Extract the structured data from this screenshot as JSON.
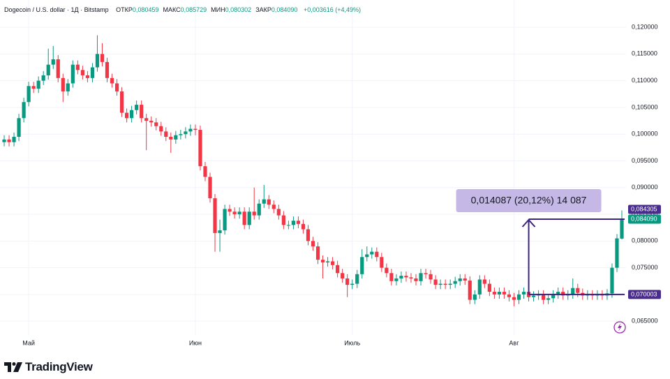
{
  "chart_data": {
    "type": "candlestick",
    "title": "Dogecoin / U.S. dollar · 1Д · Bitstamp",
    "header_fields": [
      {
        "label": "ОТКР",
        "value": "0,080459"
      },
      {
        "label": "МАКС",
        "value": "0,085729"
      },
      {
        "label": "МИН",
        "value": "0,080302"
      },
      {
        "label": "ЗАКР",
        "value": "0,084090"
      }
    ],
    "change": "+0,003616 (+4,49%)",
    "up_color": "#089981",
    "down_color": "#f23645",
    "grid": true,
    "categories": [
      null,
      null,
      null,
      null,
      null,
      "Май",
      null,
      null,
      null,
      null,
      null,
      null,
      null,
      null,
      null,
      null,
      null,
      null,
      null,
      null,
      null,
      null,
      null,
      null,
      null,
      null,
      null,
      null,
      null,
      null,
      null,
      null,
      null,
      null,
      null,
      null,
      null,
      null,
      null,
      "Июн",
      null,
      null,
      null,
      null,
      null,
      null,
      null,
      null,
      null,
      null,
      null,
      null,
      null,
      null,
      null,
      null,
      null,
      null,
      null,
      null,
      null,
      null,
      null,
      null,
      null,
      null,
      null,
      null,
      null,
      null,
      null,
      "Июль",
      null,
      null,
      null,
      null,
      null,
      null,
      null,
      null,
      null,
      null,
      null,
      null,
      null,
      null,
      null,
      null,
      null,
      null,
      null,
      null,
      null,
      null,
      null,
      null,
      null,
      null,
      null,
      null,
      null,
      null,
      null,
      null,
      "Авг",
      null,
      null,
      null,
      null,
      null,
      null,
      null,
      null,
      null,
      null,
      null,
      null,
      null,
      null,
      null,
      null,
      null,
      null,
      null,
      null,
      null,
      null
    ],
    "open": [
      0.0985,
      0.099,
      0.0985,
      0.0995,
      0.103,
      0.106,
      0.109,
      0.1085,
      0.11,
      0.111,
      0.113,
      0.114,
      0.1105,
      0.108,
      0.1095,
      0.113,
      0.112,
      0.111,
      0.1105,
      0.1125,
      0.115,
      0.1135,
      0.1105,
      0.1095,
      0.108,
      0.104,
      0.103,
      0.1045,
      0.1055,
      0.103,
      0.1025,
      0.1022,
      0.1015,
      0.1005,
      0.0995,
      0.099,
      0.0998,
      0.1,
      0.1005,
      0.101,
      0.1008,
      0.094,
      0.092,
      0.088,
      0.0815,
      0.082,
      0.086,
      0.0855,
      0.085,
      0.0855,
      0.083,
      0.0855,
      0.0848,
      0.087,
      0.0878,
      0.0868,
      0.086,
      0.0848,
      0.083,
      0.083,
      0.0838,
      0.0832,
      0.0822,
      0.08,
      0.079,
      0.0765,
      0.076,
      0.0762,
      0.0755,
      0.074,
      0.073,
      0.0718,
      0.072,
      0.0738,
      0.077,
      0.0775,
      0.078,
      0.077,
      0.075,
      0.074,
      0.0725,
      0.073,
      0.0735,
      0.0732,
      0.073,
      0.0725,
      0.074,
      0.0738,
      0.0728,
      0.0718,
      0.072,
      0.0718,
      0.072,
      0.0725,
      0.073,
      0.0726,
      0.069,
      0.07,
      0.0728,
      0.072,
      0.0705,
      0.07,
      0.0705,
      0.07,
      0.0695,
      0.069,
      0.07,
      0.0705,
      0.0695,
      0.0698,
      0.07,
      0.069,
      0.0693,
      0.07,
      0.0705,
      0.0698,
      0.07,
      0.0712,
      0.0703,
      0.0698,
      0.07,
      0.0698,
      0.07,
      0.0698,
      0.0702,
      0.075,
      0.080459
    ],
    "high": [
      0.0998,
      0.0998,
      0.1003,
      0.1038,
      0.1068,
      0.1098,
      0.1098,
      0.1108,
      0.1118,
      0.116,
      0.1165,
      0.1148,
      0.1113,
      0.1103,
      0.1138,
      0.1138,
      0.1128,
      0.1118,
      0.1133,
      0.1185,
      0.117,
      0.1143,
      0.1113,
      0.1103,
      0.1088,
      0.1048,
      0.1053,
      0.1063,
      0.1063,
      0.1038,
      0.1033,
      0.103,
      0.1023,
      0.1013,
      0.1003,
      0.1006,
      0.1008,
      0.1013,
      0.1018,
      0.1018,
      0.1016,
      0.0948,
      0.0928,
      0.0888,
      0.084,
      0.0868,
      0.0868,
      0.0863,
      0.0863,
      0.0863,
      0.0863,
      0.09,
      0.0878,
      0.0905,
      0.0886,
      0.0876,
      0.0868,
      0.0856,
      0.0838,
      0.0846,
      0.0846,
      0.084,
      0.083,
      0.0808,
      0.0798,
      0.0773,
      0.077,
      0.077,
      0.0763,
      0.0748,
      0.0738,
      0.0728,
      0.0746,
      0.0785,
      0.079,
      0.0788,
      0.0788,
      0.0778,
      0.0758,
      0.0748,
      0.0738,
      0.0743,
      0.0743,
      0.074,
      0.0738,
      0.0748,
      0.0748,
      0.0746,
      0.0736,
      0.0728,
      0.0728,
      0.0728,
      0.0733,
      0.0738,
      0.0738,
      0.0734,
      0.0708,
      0.0736,
      0.0736,
      0.0728,
      0.0713,
      0.0713,
      0.0713,
      0.0708,
      0.0703,
      0.0708,
      0.0713,
      0.0713,
      0.0706,
      0.0708,
      0.0708,
      0.0701,
      0.0708,
      0.0713,
      0.0713,
      0.0708,
      0.073,
      0.072,
      0.0711,
      0.0708,
      0.0708,
      0.0708,
      0.0708,
      0.071,
      0.0758,
      0.0813,
      0.085729
    ],
    "low": [
      0.0977,
      0.0977,
      0.0977,
      0.0987,
      0.1022,
      0.1052,
      0.1077,
      0.1077,
      0.1092,
      0.1102,
      0.1122,
      0.1097,
      0.106,
      0.1072,
      0.1087,
      0.1112,
      0.1102,
      0.1097,
      0.1097,
      0.1117,
      0.1127,
      0.1097,
      0.1087,
      0.1072,
      0.1032,
      0.1022,
      0.1022,
      0.1037,
      0.1022,
      0.097,
      0.1014,
      0.1007,
      0.0997,
      0.0987,
      0.0965,
      0.0982,
      0.099,
      0.0992,
      0.0997,
      0.0998,
      0.0932,
      0.0912,
      0.0872,
      0.078,
      0.078,
      0.0812,
      0.0847,
      0.0842,
      0.0842,
      0.0822,
      0.0822,
      0.084,
      0.084,
      0.0862,
      0.086,
      0.0852,
      0.084,
      0.0822,
      0.0822,
      0.0822,
      0.0824,
      0.0814,
      0.0792,
      0.0782,
      0.0757,
      0.073,
      0.0752,
      0.0747,
      0.0732,
      0.0722,
      0.0695,
      0.071,
      0.0712,
      0.073,
      0.0762,
      0.0767,
      0.0762,
      0.0742,
      0.0732,
      0.0717,
      0.0717,
      0.0722,
      0.0724,
      0.0722,
      0.0717,
      0.0717,
      0.073,
      0.072,
      0.071,
      0.071,
      0.071,
      0.071,
      0.0712,
      0.0717,
      0.0718,
      0.0682,
      0.0682,
      0.0692,
      0.0712,
      0.0697,
      0.0692,
      0.0692,
      0.0692,
      0.0687,
      0.0678,
      0.0682,
      0.0692,
      0.0687,
      0.0687,
      0.069,
      0.0682,
      0.0682,
      0.0685,
      0.0692,
      0.069,
      0.069,
      0.0692,
      0.0695,
      0.069,
      0.069,
      0.069,
      0.069,
      0.069,
      0.069,
      0.0694,
      0.0742,
      0.080302
    ],
    "close": [
      0.099,
      0.0985,
      0.0995,
      0.103,
      0.106,
      0.109,
      0.1085,
      0.11,
      0.111,
      0.113,
      0.114,
      0.1105,
      0.108,
      0.1095,
      0.113,
      0.112,
      0.111,
      0.1105,
      0.1125,
      0.115,
      0.1135,
      0.1105,
      0.1095,
      0.108,
      0.104,
      0.103,
      0.1045,
      0.1055,
      0.103,
      0.1025,
      0.1022,
      0.1015,
      0.1005,
      0.0995,
      0.099,
      0.0998,
      0.1,
      0.1005,
      0.101,
      0.1008,
      0.094,
      0.092,
      0.088,
      0.0815,
      0.082,
      0.086,
      0.0855,
      0.085,
      0.0855,
      0.083,
      0.0855,
      0.0848,
      0.087,
      0.0878,
      0.0868,
      0.086,
      0.0848,
      0.083,
      0.083,
      0.0838,
      0.0832,
      0.0822,
      0.08,
      0.079,
      0.0765,
      0.076,
      0.0762,
      0.0755,
      0.074,
      0.073,
      0.0718,
      0.072,
      0.0738,
      0.077,
      0.0775,
      0.078,
      0.077,
      0.075,
      0.074,
      0.0725,
      0.073,
      0.0735,
      0.0732,
      0.073,
      0.0725,
      0.074,
      0.0738,
      0.0728,
      0.0718,
      0.072,
      0.0718,
      0.072,
      0.0725,
      0.073,
      0.0726,
      0.069,
      0.07,
      0.0728,
      0.072,
      0.0705,
      0.07,
      0.0705,
      0.07,
      0.0695,
      0.069,
      0.07,
      0.0705,
      0.0695,
      0.0698,
      0.07,
      0.069,
      0.0693,
      0.07,
      0.0705,
      0.0698,
      0.07,
      0.0712,
      0.0703,
      0.0698,
      0.07,
      0.0698,
      0.07,
      0.0698,
      0.0702,
      0.075,
      0.0805,
      0.08409
    ],
    "ylim": [
      0.0598,
      0.1251
    ],
    "yticks": [
      {
        "value": 0.065,
        "label": "0,065000"
      },
      {
        "value": 0.07,
        "label": "0,070000"
      },
      {
        "value": 0.075,
        "label": "0,075000"
      },
      {
        "value": 0.08,
        "label": "0,080000"
      },
      {
        "value": 0.085,
        "label": "0,085000"
      },
      {
        "value": 0.09,
        "label": "0,090000"
      },
      {
        "value": 0.095,
        "label": "0,095000"
      },
      {
        "value": 0.1,
        "label": "0,100000"
      },
      {
        "value": 0.105,
        "label": "0,105000"
      },
      {
        "value": 0.11,
        "label": "0,110000"
      },
      {
        "value": 0.115,
        "label": "0,115000"
      },
      {
        "value": 0.12,
        "label": "0,120000"
      }
    ],
    "price_labels": [
      {
        "value": 0.084305,
        "label": "0,084305",
        "color": "#4a2c8f"
      },
      {
        "value": 0.08409,
        "label": "0,084090",
        "color": "#089981"
      },
      {
        "value": 0.070003,
        "label": "0,070003",
        "color": "#4a2c8f"
      }
    ],
    "measure": {
      "from": 0.070003,
      "to": 0.08409,
      "label": "0,014087 (20,12%) 14 087",
      "color": "#3d2388",
      "box_color": "#c6b8e6"
    },
    "branding": "TradingView"
  }
}
